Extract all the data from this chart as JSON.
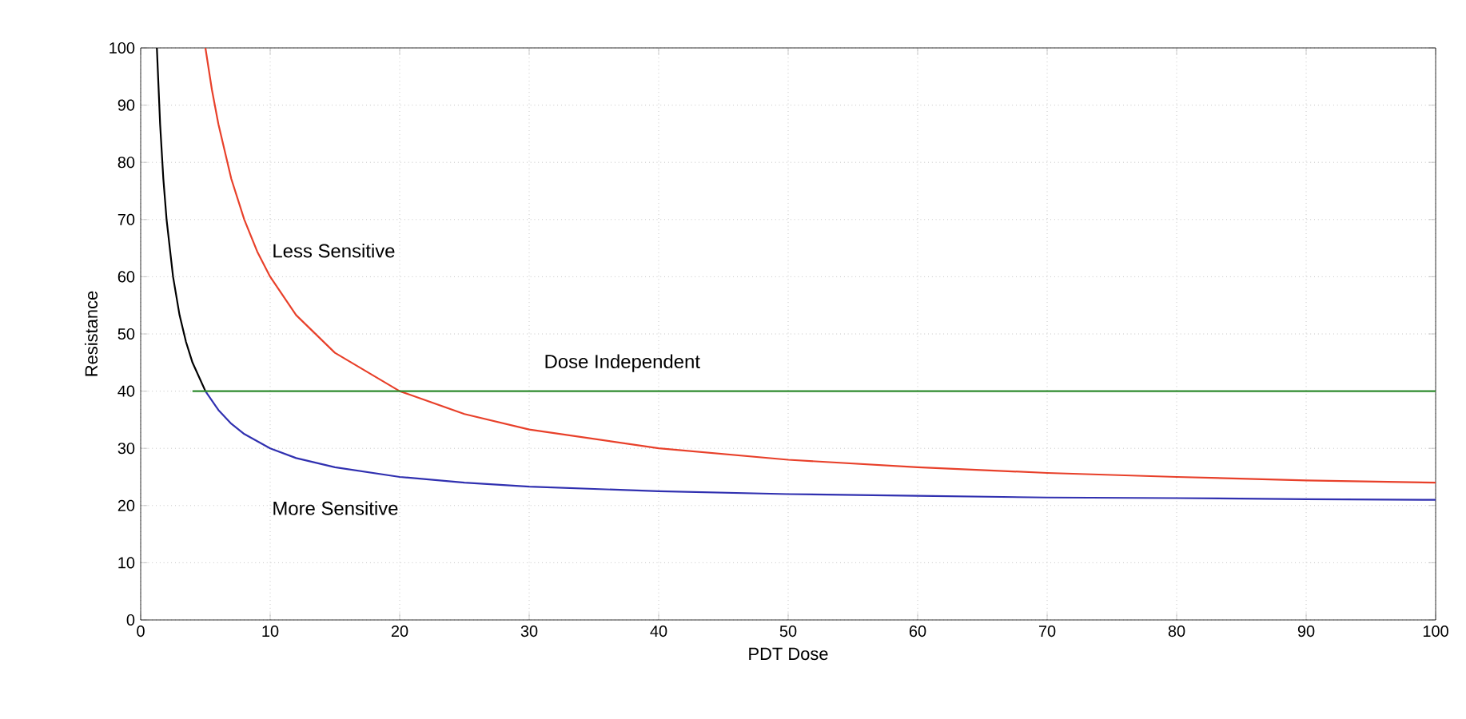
{
  "chart_data": {
    "type": "line",
    "xlabel": "PDT Dose",
    "ylabel": "Resistance",
    "xlim": [
      0,
      100
    ],
    "ylim": [
      0,
      100
    ],
    "xticks": [
      0,
      10,
      20,
      30,
      40,
      50,
      60,
      70,
      80,
      90,
      100
    ],
    "yticks": [
      0,
      10,
      20,
      30,
      40,
      50,
      60,
      70,
      80,
      90,
      100
    ],
    "grid": true,
    "marker": "none",
    "line_style": "solid",
    "series": [
      {
        "name": "Less Sensitive",
        "color": "#e8402a",
        "x": [
          5,
          5.5,
          6,
          7,
          8,
          9,
          10,
          12,
          15,
          20,
          25,
          30,
          40,
          50,
          60,
          70,
          80,
          90,
          100
        ],
        "values": [
          100,
          92.7,
          86.7,
          77.1,
          70,
          64.4,
          60,
          53.3,
          46.7,
          40,
          36,
          33.3,
          30,
          28,
          26.7,
          25.7,
          25,
          24.4,
          24
        ]
      },
      {
        "color": "#000000",
        "x": [
          1.25,
          1.5,
          1.75,
          2,
          2.5,
          3,
          3.5,
          4,
          5
        ],
        "values": [
          100,
          86.7,
          77.1,
          70,
          60,
          53.3,
          48.6,
          45,
          40
        ]
      },
      {
        "name": "More Sensitive",
        "color": "#3030b0",
        "x": [
          5,
          6,
          7,
          8,
          10,
          12,
          15,
          20,
          25,
          30,
          40,
          50,
          60,
          70,
          80,
          90,
          100
        ],
        "values": [
          40,
          36.7,
          34.3,
          32.5,
          30,
          28.3,
          26.7,
          25,
          24,
          23.3,
          22.5,
          22,
          21.7,
          21.4,
          21.3,
          21.1,
          21
        ]
      },
      {
        "name": "Dose Independent",
        "color": "#2e8b2e",
        "x": [
          4,
          100
        ],
        "values": [
          40,
          40
        ]
      }
    ]
  }
}
